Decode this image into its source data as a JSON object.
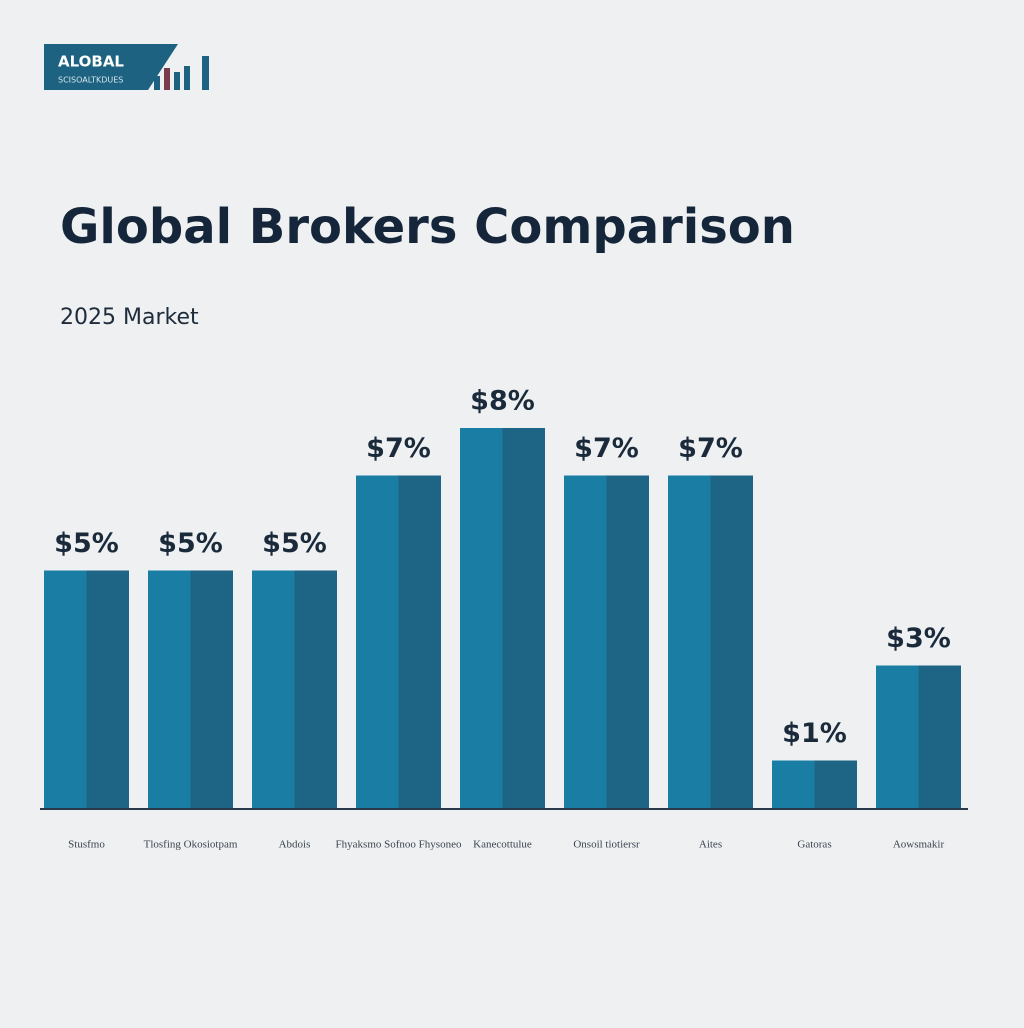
{
  "logo": {
    "title": "ALOBAL",
    "subtitle": "SCISOALTKDUES"
  },
  "chart_data": {
    "type": "bar",
    "title": "Global Brokers Comparison",
    "subtitle": "2025 Market",
    "categories": [
      "Stusfmo",
      "Tlosfing Okosiotpam",
      "Abdois",
      "Fhyaksmo Sofnoo Fhysoneo",
      "Kanecottulue",
      "Onsoil tiotiersr",
      "Aites",
      "Gatoras",
      "Aowsmakir"
    ],
    "values": [
      5,
      5,
      5,
      7,
      8,
      7,
      7,
      1,
      3
    ],
    "value_labels": [
      "$5%",
      "$5%",
      "$5%",
      "$7%",
      "$8%",
      "$7%",
      "$7%",
      "$1%",
      "$3%"
    ],
    "color": "#1a7ea4",
    "shade_color": "#1e6485"
  }
}
